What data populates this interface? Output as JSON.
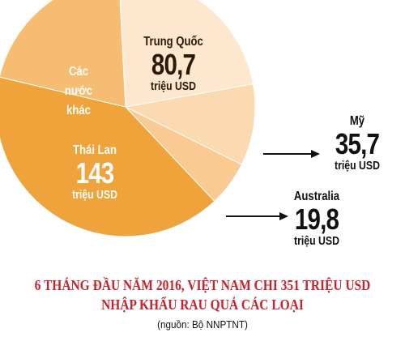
{
  "chart_data": {
    "type": "pie",
    "title": [
      "6 THÁNG ĐẦU NĂM 2016, VIỆT NAM CHI 351 TRIỆU USD",
      "NHẬP KHẨU RAU QUẢ CÁC LOẠI"
    ],
    "source": "(nguồn: Bộ NNPTNT)",
    "unit": "triệu USD",
    "categories": [
      "Trung Quốc",
      "Mỹ",
      "Australia",
      "Thái Lan",
      "Các nước khác"
    ],
    "values": [
      80.7,
      35.7,
      19.8,
      143,
      71.8
    ],
    "value_labels": [
      "80,7",
      "35,7",
      "19,8",
      "143",
      null
    ],
    "colors": [
      "#fde7ce",
      "#fbd9b1",
      "#f9ca92",
      "#f0a23b",
      "#f6bd72"
    ]
  }
}
